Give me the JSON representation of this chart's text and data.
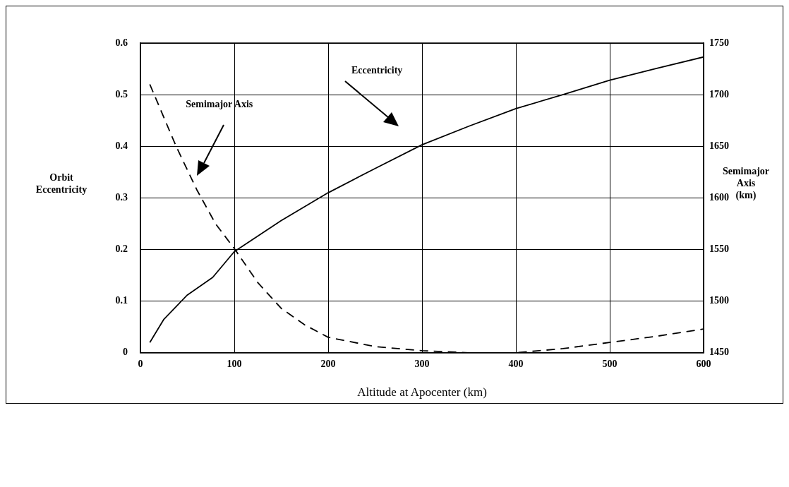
{
  "chart_data": {
    "type": "line",
    "xlabel": "Altitude at Apocenter (km)",
    "ylabel": "Orbit Eccentricity",
    "y2label": "Semimajor Axis (km)",
    "xlim": [
      0,
      600
    ],
    "xticks": [
      0,
      100,
      200,
      300,
      400,
      500,
      600
    ],
    "ylim": [
      0,
      0.6
    ],
    "yticks": [
      0,
      0.1,
      0.2,
      0.3,
      0.4,
      0.5,
      0.6
    ],
    "y2lim": [
      1450,
      1750
    ],
    "y2ticks": [
      1450,
      1500,
      1550,
      1600,
      1650,
      1700,
      1750
    ],
    "grid": true,
    "legend": false,
    "marker": "none",
    "annotations": [
      "Eccentricity",
      "Semimajor Axis"
    ],
    "series": [
      {
        "color": "#000000",
        "line_style": "solid",
        "x": [
          10,
          25,
          50,
          77,
          100,
          150,
          200,
          250,
          300,
          350,
          400,
          450,
          500,
          550,
          600
        ],
        "values": [
          0.02,
          0.065,
          0.112,
          0.146,
          0.196,
          0.256,
          0.31,
          0.357,
          0.403,
          0.439,
          0.473,
          0.5,
          0.528,
          0.551,
          0.573
        ]
      },
      {
        "color": "#000000",
        "line_style": "dashed",
        "axis": "y2",
        "x": [
          10,
          38,
          60,
          80,
          100,
          125,
          150,
          175,
          200,
          250,
          300,
          350,
          400,
          450,
          500,
          550,
          600
        ],
        "values": [
          1710,
          1650,
          1608,
          1575,
          1551,
          1518,
          1493,
          1477,
          1465,
          1456,
          1452,
          1450,
          1450,
          1454,
          1460,
          1466,
          1473
        ]
      }
    ]
  }
}
